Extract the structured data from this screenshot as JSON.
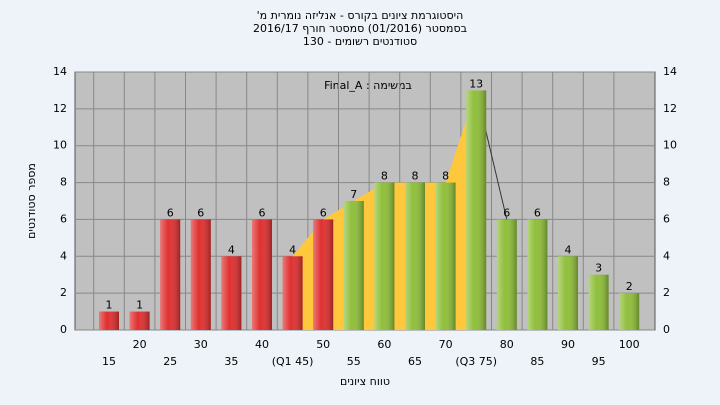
{
  "chart_data": {
    "type": "bar",
    "title": [
      "היסטוגרמת ציונים בקורס - אנליזה נומרית מ'",
      "בסמסטר  (01/2016)  סמסטר חורף 2016/17",
      "סטודנטים רשומים - 130"
    ],
    "annotation": "Final_A : במשימה",
    "x_label": "טווח ציונים",
    "y_label": "מספר סטודנטים",
    "categories": [
      "15",
      "20",
      "25",
      "30",
      "35",
      "40",
      "(Q1 45)",
      "50",
      "55",
      "60",
      "65",
      "70",
      "(Q3 75)",
      "80",
      "85",
      "90",
      "95",
      "100"
    ],
    "values": [
      1,
      1,
      6,
      6,
      4,
      6,
      4,
      6,
      7,
      8,
      8,
      8,
      13,
      6,
      6,
      4,
      3,
      2
    ],
    "colors": [
      "#e03030",
      "#e03030",
      "#e03030",
      "#e03030",
      "#e03030",
      "#e03030",
      "#e03030",
      "#e03030",
      "#8fbf3a",
      "#8fbf3a",
      "#8fbf3a",
      "#8fbf3a",
      "#8fbf3a",
      "#8fbf3a",
      "#8fbf3a",
      "#8fbf3a",
      "#8fbf3a",
      "#8fbf3a"
    ],
    "area_color": "#ffc83c",
    "ylim": [
      0,
      14
    ],
    "yticks": [
      0,
      2,
      4,
      6,
      8,
      10,
      12,
      14
    ],
    "grid": true
  }
}
